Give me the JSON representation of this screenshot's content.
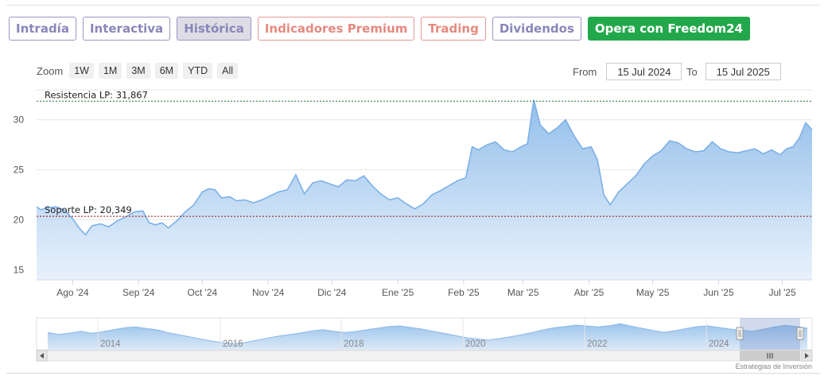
{
  "tabs": [
    {
      "label": "Intradía",
      "style": "normal"
    },
    {
      "label": "Interactiva",
      "style": "normal"
    },
    {
      "label": "Histórica",
      "style": "active"
    },
    {
      "label": "Indicadores Premium",
      "style": "red"
    },
    {
      "label": "Trading",
      "style": "red"
    },
    {
      "label": "Dividendos",
      "style": "normal"
    },
    {
      "label": "Opera con Freedom24",
      "style": "green"
    }
  ],
  "zoom": {
    "label": "Zoom",
    "buttons": [
      "1W",
      "1M",
      "3M",
      "6M",
      "YTD",
      "All"
    ]
  },
  "range": {
    "from_label": "From",
    "from_value": "15 Jul 2024",
    "to_label": "To",
    "to_value": "15 Jul 2025"
  },
  "credit": "Estrategias de Inversión",
  "colors": {
    "line": "#7cb0e8",
    "fill_top": "#90bde9",
    "resistance": "#1e6b2b",
    "support": "#8a1010"
  },
  "chart_data": {
    "type": "area",
    "ylim": [
      14,
      33
    ],
    "yticks": [
      15,
      20,
      25,
      30
    ],
    "x_ticks": [
      {
        "label": "Ago '24",
        "date": "2024-08-01"
      },
      {
        "label": "Sep '24",
        "date": "2024-09-01"
      },
      {
        "label": "Oct '24",
        "date": "2024-10-01"
      },
      {
        "label": "Nov '24",
        "date": "2024-11-01"
      },
      {
        "label": "Dic '24",
        "date": "2024-12-01"
      },
      {
        "label": "Ene '25",
        "date": "2025-01-01"
      },
      {
        "label": "Feb '25",
        "date": "2025-02-01"
      },
      {
        "label": "Mar '25",
        "date": "2025-03-01"
      },
      {
        "label": "Abr '25",
        "date": "2025-04-01"
      },
      {
        "label": "May '25",
        "date": "2025-05-01"
      },
      {
        "label": "Jun '25",
        "date": "2025-06-01"
      },
      {
        "label": "Jul '25",
        "date": "2025-07-01"
      }
    ],
    "x_range": [
      "2024-07-15",
      "2025-07-15"
    ],
    "reference_lines": [
      {
        "label": "Resistencia LP: 31,867",
        "value": 31.867,
        "kind": "resistance"
      },
      {
        "label": "Soporte LP: 20,349",
        "value": 20.349,
        "kind": "support"
      }
    ],
    "series": [
      {
        "x": [
          "2024-07-15",
          "2024-07-17",
          "2024-07-20",
          "2024-07-24",
          "2024-07-28",
          "2024-08-01",
          "2024-08-04",
          "2024-08-07",
          "2024-08-10",
          "2024-08-14",
          "2024-08-18",
          "2024-08-22",
          "2024-08-26",
          "2024-08-30",
          "2024-09-03",
          "2024-09-06",
          "2024-09-09",
          "2024-09-12",
          "2024-09-15",
          "2024-09-19",
          "2024-09-23",
          "2024-09-27",
          "2024-10-01",
          "2024-10-04",
          "2024-10-07",
          "2024-10-10",
          "2024-10-14",
          "2024-10-17",
          "2024-10-21",
          "2024-10-25",
          "2024-10-29",
          "2024-11-02",
          "2024-11-06",
          "2024-11-10",
          "2024-11-14",
          "2024-11-18",
          "2024-11-22",
          "2024-11-26",
          "2024-11-30",
          "2024-12-04",
          "2024-12-08",
          "2024-12-12",
          "2024-12-16",
          "2024-12-20",
          "2024-12-24",
          "2024-12-28",
          "2025-01-01",
          "2025-01-05",
          "2025-01-09",
          "2025-01-13",
          "2025-01-17",
          "2025-01-21",
          "2025-01-25",
          "2025-01-29",
          "2025-02-02",
          "2025-02-05",
          "2025-02-08",
          "2025-02-12",
          "2025-02-16",
          "2025-02-20",
          "2025-02-24",
          "2025-02-28",
          "2025-03-03",
          "2025-03-06",
          "2025-03-09",
          "2025-03-13",
          "2025-03-17",
          "2025-03-21",
          "2025-03-25",
          "2025-03-29",
          "2025-04-02",
          "2025-04-05",
          "2025-04-08",
          "2025-04-11",
          "2025-04-15",
          "2025-04-19",
          "2025-04-23",
          "2025-04-27",
          "2025-05-01",
          "2025-05-05",
          "2025-05-09",
          "2025-05-13",
          "2025-05-17",
          "2025-05-21",
          "2025-05-25",
          "2025-05-29",
          "2025-06-02",
          "2025-06-06",
          "2025-06-10",
          "2025-06-14",
          "2025-06-18",
          "2025-06-22",
          "2025-06-26",
          "2025-06-30",
          "2025-07-03",
          "2025-07-06",
          "2025-07-09",
          "2025-07-12",
          "2025-07-15"
        ],
        "y": [
          21.3,
          21.0,
          21.2,
          21.3,
          21.0,
          20.1,
          19.2,
          18.5,
          19.4,
          19.6,
          19.3,
          19.9,
          20.3,
          20.8,
          20.9,
          19.7,
          19.5,
          19.7,
          19.2,
          19.9,
          20.8,
          21.5,
          22.8,
          23.1,
          23.0,
          22.2,
          22.3,
          21.9,
          22.0,
          21.7,
          22.0,
          22.4,
          22.8,
          23.0,
          24.5,
          22.6,
          23.7,
          23.9,
          23.6,
          23.3,
          24.0,
          23.9,
          24.4,
          23.4,
          22.6,
          22.0,
          22.2,
          21.6,
          21.1,
          21.6,
          22.5,
          22.9,
          23.4,
          23.9,
          24.2,
          27.3,
          27.0,
          27.5,
          27.8,
          27.0,
          26.8,
          27.3,
          27.6,
          32.0,
          29.5,
          28.6,
          29.2,
          30.0,
          28.4,
          27.1,
          27.3,
          26.0,
          22.5,
          21.5,
          22.8,
          23.6,
          24.4,
          25.6,
          26.4,
          26.9,
          27.9,
          27.7,
          27.1,
          26.8,
          26.9,
          27.8,
          27.1,
          26.8,
          26.7,
          26.9,
          27.1,
          26.6,
          27.0,
          26.5,
          27.1,
          27.3,
          28.2,
          29.7,
          29.0
        ]
      }
    ]
  },
  "navigator": {
    "year_labels": [
      "2014",
      "2016",
      "2018",
      "2020",
      "2022",
      "2024"
    ],
    "values": [
      20.5,
      19.8,
      20.3,
      21.0,
      20.2,
      20.8,
      21.6,
      22.3,
      22.6,
      22.0,
      21.5,
      20.4,
      19.6,
      18.8,
      18.0,
      17.2,
      16.6,
      16.2,
      16.8,
      17.6,
      18.4,
      19.2,
      19.8,
      20.4,
      21.1,
      21.6,
      21.0,
      20.5,
      20.9,
      21.6,
      22.2,
      22.8,
      23.0,
      22.4,
      21.8,
      21.0,
      20.2,
      19.4,
      18.6,
      18.1,
      17.7,
      18.2,
      18.9,
      19.6,
      20.5,
      21.5,
      22.3,
      22.8,
      23.3,
      23.0,
      22.6,
      23.1,
      23.8,
      22.9,
      22.1,
      21.3,
      20.6,
      21.2,
      22.0,
      22.8,
      23.0,
      22.4,
      21.8,
      21.4,
      21.0,
      21.7,
      22.6,
      23.2,
      22.8,
      22.2
    ]
  }
}
